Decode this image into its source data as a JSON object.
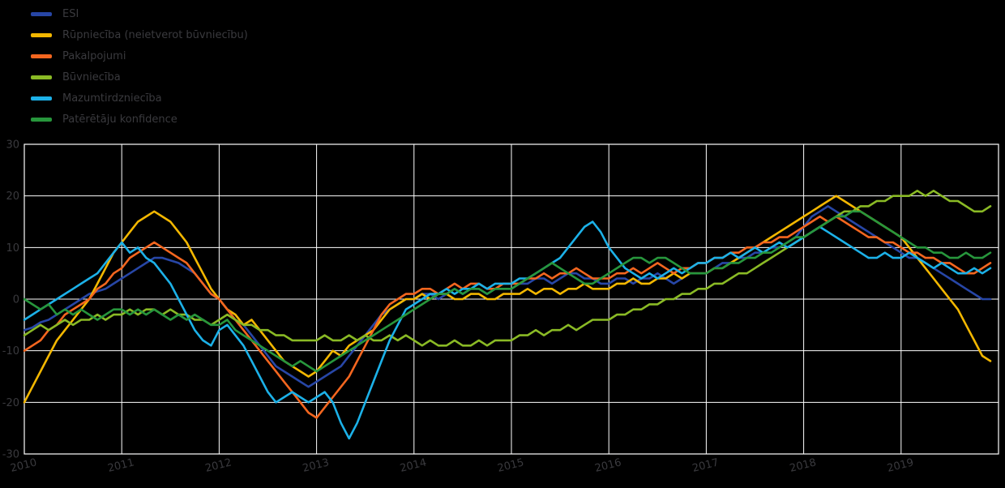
{
  "colors": {
    "background": "#000000",
    "grid": "#ffffff",
    "axis_text": "#3a3a3e",
    "legend_text": "#3a3a3e"
  },
  "chart_data": {
    "type": "line",
    "title": "",
    "xlabel": "",
    "ylabel": "",
    "frequency": "monthly",
    "x_start_year": 2010,
    "x_tick_labels": [
      "2010",
      "2011",
      "2012",
      "2013",
      "2014",
      "2015",
      "2016",
      "2017",
      "2018",
      "2019"
    ],
    "y_ticks": [
      30,
      20,
      10,
      0,
      -10,
      -20,
      -30
    ],
    "ylim": [
      -30,
      30
    ],
    "grid": true,
    "legend_position": "top-left",
    "series": [
      {
        "id": "esi",
        "name": "ESI",
        "color": "#2746a6",
        "values": [
          -6,
          -5.5,
          -4.5,
          -4,
          -3,
          -2,
          -1,
          0,
          1,
          1.5,
          2,
          3,
          4,
          5,
          6,
          7,
          8,
          8,
          7.5,
          7,
          6,
          5,
          3,
          1,
          0,
          -2,
          -3,
          -5,
          -7,
          -9,
          -11,
          -13,
          -14,
          -15,
          -16,
          -17,
          -16,
          -15,
          -14,
          -13,
          -11,
          -9,
          -7,
          -5,
          -3,
          -2,
          -1,
          0,
          0,
          1,
          1,
          0,
          1,
          2,
          1,
          2,
          2,
          1,
          2,
          2,
          2,
          3,
          3,
          4,
          4,
          3,
          4,
          5,
          5,
          4,
          4,
          3,
          3,
          4,
          4,
          3,
          4,
          4,
          5,
          4,
          3,
          4,
          5,
          5,
          5,
          6,
          7,
          7,
          8,
          8,
          9,
          9,
          10,
          10,
          11,
          12,
          14,
          16,
          17,
          18,
          17,
          16,
          15,
          14,
          13,
          12,
          11,
          10,
          9,
          8,
          8,
          7,
          6,
          5,
          4,
          3,
          2,
          1,
          0,
          0
        ]
      },
      {
        "id": "industry",
        "name": "Rūpniecība (neietverot būvniecību)",
        "color": "#f3b700",
        "values": [
          -20,
          -17,
          -14,
          -11,
          -8,
          -6,
          -4,
          -2,
          0,
          3,
          6,
          9,
          11,
          13,
          15,
          16,
          17,
          16,
          15,
          13,
          11,
          8,
          5,
          2,
          0,
          -2,
          -3,
          -5,
          -4,
          -6,
          -8,
          -10,
          -12,
          -13,
          -14,
          -15,
          -14,
          -12,
          -10,
          -11,
          -9,
          -8,
          -7,
          -6,
          -4,
          -2,
          -1,
          0,
          0,
          1,
          0,
          1,
          1,
          0,
          0,
          1,
          1,
          0,
          0,
          1,
          1,
          1,
          2,
          1,
          2,
          2,
          1,
          2,
          2,
          3,
          2,
          2,
          2,
          3,
          3,
          4,
          3,
          3,
          4,
          4,
          5,
          4,
          5,
          5,
          5,
          6,
          6,
          7,
          8,
          9,
          10,
          11,
          12,
          13,
          14,
          15,
          16,
          17,
          18,
          19,
          20,
          19,
          18,
          17,
          16,
          15,
          14,
          13,
          12,
          10,
          8,
          6,
          4,
          2,
          0,
          -2,
          -5,
          -8,
          -11,
          -12
        ]
      },
      {
        "id": "services",
        "name": "Pakalpojumi",
        "color": "#f4661f",
        "values": [
          -10,
          -9,
          -8,
          -6,
          -5,
          -3,
          -2,
          -1,
          0,
          2,
          3,
          5,
          6,
          8,
          9,
          10,
          11,
          10,
          9,
          8,
          7,
          5,
          3,
          1,
          0,
          -2,
          -4,
          -6,
          -8,
          -10,
          -12,
          -14,
          -16,
          -18,
          -20,
          -22,
          -23,
          -21,
          -19,
          -17,
          -15,
          -12,
          -9,
          -6,
          -3,
          -1,
          0,
          1,
          1,
          2,
          2,
          1,
          2,
          3,
          2,
          3,
          3,
          2,
          2,
          3,
          3,
          3,
          4,
          4,
          5,
          4,
          5,
          5,
          6,
          5,
          4,
          4,
          4,
          5,
          5,
          6,
          5,
          6,
          7,
          6,
          5,
          6,
          6,
          7,
          7,
          8,
          8,
          9,
          9,
          10,
          10,
          11,
          11,
          12,
          12,
          13,
          14,
          15,
          16,
          15,
          16,
          15,
          14,
          13,
          12,
          12,
          11,
          11,
          10,
          9,
          9,
          8,
          8,
          7,
          7,
          6,
          5,
          5,
          6,
          7
        ]
      },
      {
        "id": "construction",
        "name": "Būvniecība",
        "color": "#8aba25",
        "values": [
          -7,
          -6,
          -5,
          -6,
          -5,
          -4,
          -5,
          -4,
          -4,
          -3,
          -4,
          -3,
          -3,
          -2,
          -3,
          -2,
          -2,
          -3,
          -2,
          -3,
          -3,
          -4,
          -4,
          -5,
          -4,
          -3,
          -4,
          -5,
          -5,
          -6,
          -6,
          -7,
          -7,
          -8,
          -8,
          -8,
          -8,
          -7,
          -8,
          -8,
          -7,
          -8,
          -7,
          -8,
          -8,
          -7,
          -8,
          -7,
          -8,
          -9,
          -8,
          -9,
          -9,
          -8,
          -9,
          -9,
          -8,
          -9,
          -8,
          -8,
          -8,
          -7,
          -7,
          -6,
          -7,
          -6,
          -6,
          -5,
          -6,
          -5,
          -4,
          -4,
          -4,
          -3,
          -3,
          -2,
          -2,
          -1,
          -1,
          0,
          0,
          1,
          1,
          2,
          2,
          3,
          3,
          4,
          5,
          5,
          6,
          7,
          8,
          9,
          10,
          11,
          12,
          13,
          14,
          15,
          16,
          17,
          17,
          18,
          18,
          19,
          19,
          20,
          20,
          20,
          21,
          20,
          21,
          20,
          19,
          19,
          18,
          17,
          17,
          18
        ]
      },
      {
        "id": "retail",
        "name": "Mazumtirdzniecība",
        "color": "#1cb1e8",
        "values": [
          -4,
          -3,
          -2,
          -1,
          0,
          1,
          2,
          3,
          4,
          5,
          7,
          9,
          11,
          9,
          10,
          8,
          7,
          5,
          3,
          0,
          -3,
          -6,
          -8,
          -9,
          -6,
          -5,
          -7,
          -9,
          -12,
          -15,
          -18,
          -20,
          -19,
          -18,
          -19,
          -20,
          -19,
          -18,
          -20,
          -24,
          -27,
          -24,
          -20,
          -16,
          -12,
          -8,
          -5,
          -2,
          -1,
          0,
          1,
          1,
          2,
          1,
          2,
          2,
          3,
          2,
          3,
          3,
          3,
          4,
          4,
          5,
          6,
          7,
          8,
          10,
          12,
          14,
          15,
          13,
          10,
          8,
          6,
          5,
          4,
          5,
          4,
          5,
          6,
          5,
          6,
          7,
          7,
          8,
          8,
          9,
          8,
          9,
          10,
          9,
          10,
          11,
          10,
          11,
          12,
          13,
          14,
          13,
          12,
          11,
          10,
          9,
          8,
          8,
          9,
          8,
          8,
          9,
          8,
          7,
          6,
          7,
          6,
          5,
          5,
          6,
          5,
          6
        ]
      },
      {
        "id": "consumer",
        "name": "Patērētāju konfidence",
        "color": "#27963c",
        "values": [
          0,
          -1,
          -2,
          -1,
          -3,
          -2,
          -3,
          -2,
          -3,
          -4,
          -3,
          -2,
          -2,
          -3,
          -2,
          -3,
          -2,
          -3,
          -4,
          -3,
          -4,
          -3,
          -4,
          -5,
          -5,
          -4,
          -6,
          -7,
          -8,
          -9,
          -10,
          -11,
          -12,
          -13,
          -12,
          -13,
          -14,
          -13,
          -12,
          -11,
          -10,
          -9,
          -8,
          -7,
          -6,
          -5,
          -4,
          -3,
          -2,
          -1,
          0,
          1,
          1,
          2,
          1,
          2,
          2,
          1,
          2,
          2,
          2,
          3,
          4,
          5,
          6,
          7,
          6,
          5,
          4,
          3,
          3,
          4,
          5,
          6,
          7,
          8,
          8,
          7,
          8,
          8,
          7,
          6,
          5,
          5,
          5,
          6,
          6,
          7,
          7,
          8,
          8,
          9,
          9,
          10,
          11,
          12,
          12,
          13,
          14,
          15,
          16,
          16,
          17,
          17,
          16,
          15,
          14,
          13,
          12,
          11,
          10,
          10,
          9,
          9,
          8,
          8,
          9,
          8,
          8,
          9
        ]
      }
    ]
  }
}
